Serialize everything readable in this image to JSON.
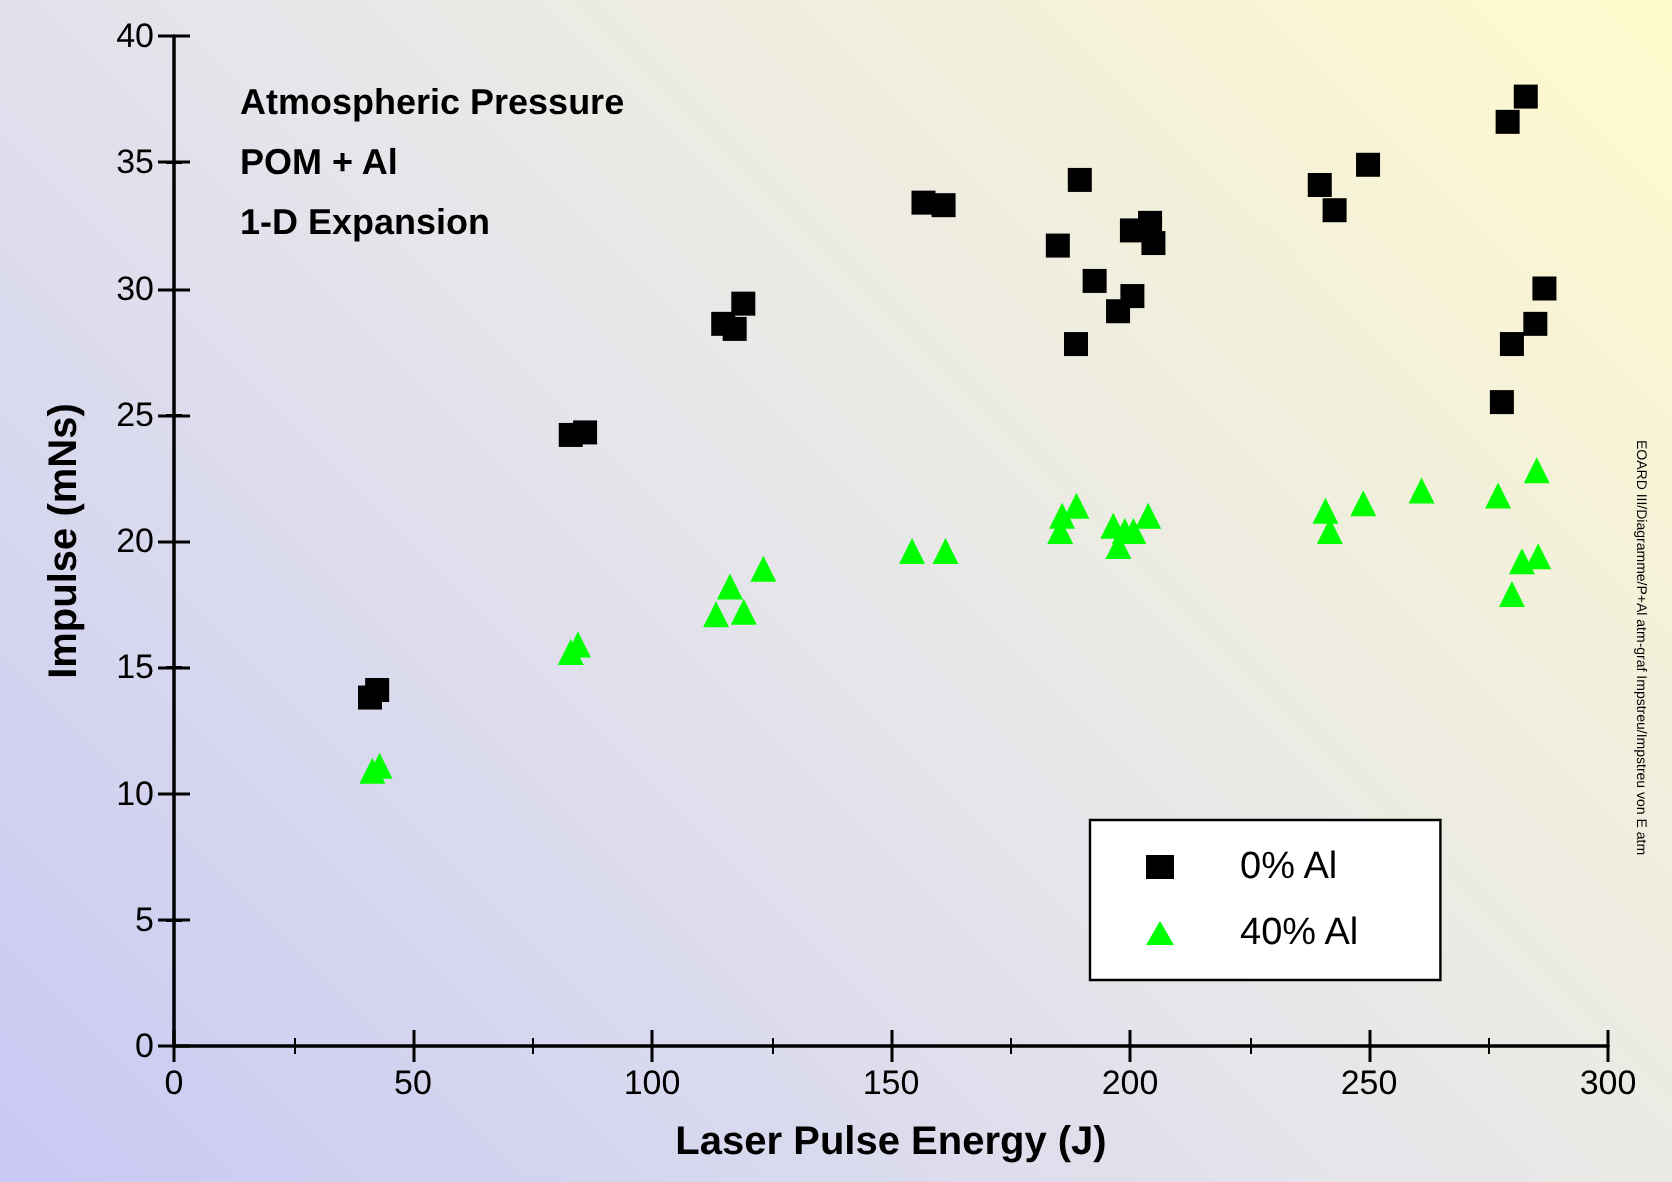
{
  "chart_data": {
    "type": "scatter",
    "xlabel": "Laser Pulse Energy (J)",
    "ylabel": "Impulse (mNs)",
    "xlim": [
      0,
      300
    ],
    "xticks": [
      0,
      50,
      100,
      150,
      200,
      250,
      300
    ],
    "ylim": [
      0,
      40
    ],
    "yticks": [
      0,
      5,
      10,
      15,
      20,
      25,
      30,
      35,
      40
    ],
    "grid": false,
    "legend": "bottom right",
    "annotations": [
      "Atmospheric Pressure",
      "POM + Al",
      "1-D Expansion",
      "EOARD III/Diagramme/P+Al atm-graf Impstreu/Impstreu von E atm"
    ],
    "series": [
      {
        "name": "0% Al",
        "color": "#000000",
        "marker": "square",
        "x": [
          41,
          42.5,
          83,
          86,
          114.9,
          117.3,
          119.1,
          156.8,
          161,
          189.5,
          184.9,
          192.6,
          188.7,
          197.5,
          200.5,
          200.4,
          204.2,
          204.9,
          239.7,
          242.8,
          249.8,
          279,
          282.8,
          286.7,
          284.8,
          279.9,
          277.8
        ],
        "values": [
          13.8,
          14.1,
          24.2,
          24.3,
          28.6,
          28.4,
          29.4,
          33.4,
          33.3,
          34.3,
          31.7,
          30.3,
          27.8,
          29.1,
          29.7,
          32.3,
          32.6,
          31.8,
          34.1,
          33.1,
          34.9,
          36.6,
          37.6,
          30.0,
          28.6,
          27.8,
          25.5
        ]
      },
      {
        "name": "40% Al",
        "color": "#00ff00",
        "marker": "triangle",
        "x": [
          41.5,
          43,
          83,
          84.5,
          113.4,
          119.2,
          116.3,
          123.3,
          154.4,
          161.4,
          185.4,
          185.8,
          188.8,
          196.5,
          197.6,
          198.9,
          200.7,
          203.8,
          240.9,
          241.8,
          248.8,
          261,
          277,
          285.1,
          279.9,
          282,
          285.4
        ],
        "values": [
          10.9,
          11.1,
          15.6,
          15.9,
          17.1,
          17.2,
          18.2,
          18.9,
          19.6,
          19.6,
          20.4,
          21.0,
          21.4,
          20.6,
          19.8,
          20.4,
          20.4,
          21.0,
          21.2,
          20.4,
          21.5,
          22.0,
          21.8,
          22.8,
          17.9,
          19.2,
          19.4
        ]
      }
    ]
  }
}
